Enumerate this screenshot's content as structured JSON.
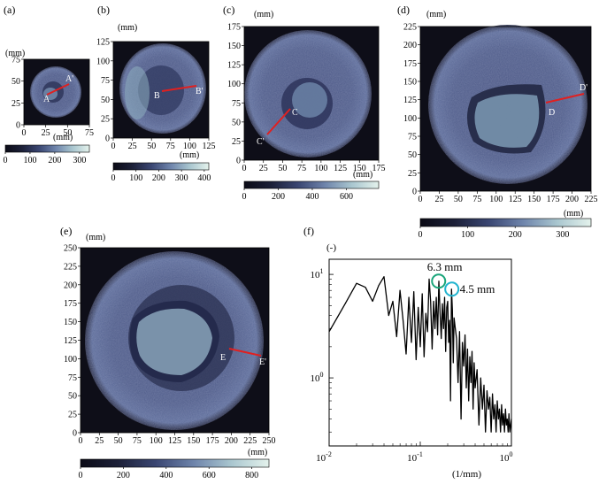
{
  "palette": {
    "ct_stops": [
      "#0b0b16",
      "#1c2038",
      "#3a4672",
      "#6e84ab",
      "#a9c6cf",
      "#e4f2ec"
    ],
    "line_red": "#e02020",
    "circle_green": "#1aa57a",
    "circle_cyan": "#22b4cf"
  },
  "unit_label": "(mm)",
  "panels": [
    {
      "id": "a",
      "label": "(a)",
      "range": 75,
      "xticks": [
        "0",
        "25",
        "50",
        "75"
      ],
      "yticks": [
        "0",
        "25",
        "50",
        "75"
      ],
      "cbar_ticks": [
        "0",
        "100",
        "200",
        "300"
      ],
      "cbar_max": 340,
      "line": [
        "A",
        "A'"
      ]
    },
    {
      "id": "b",
      "label": "(b)",
      "range": 125,
      "xticks": [
        "0",
        "25",
        "50",
        "75",
        "100",
        "125"
      ],
      "yticks": [
        "0",
        "25",
        "50",
        "75",
        "100",
        "125"
      ],
      "cbar_ticks": [
        "0",
        "100",
        "200",
        "300",
        "400"
      ],
      "cbar_max": 420,
      "line": [
        "B",
        "B'"
      ]
    },
    {
      "id": "c",
      "label": "(c)",
      "range": 175,
      "xticks": [
        "0",
        "25",
        "50",
        "75",
        "100",
        "125",
        "150",
        "175"
      ],
      "yticks": [
        "0",
        "25",
        "50",
        "75",
        "100",
        "125",
        "150",
        "175"
      ],
      "cbar_ticks": [
        "0",
        "200",
        "400",
        "600"
      ],
      "cbar_max": 790,
      "line": [
        "C",
        "C'"
      ]
    },
    {
      "id": "d",
      "label": "(d)",
      "range": 225,
      "xticks": [
        "0",
        "25",
        "50",
        "75",
        "100",
        "125",
        "150",
        "175",
        "200",
        "225"
      ],
      "yticks": [
        "0",
        "25",
        "50",
        "75",
        "100",
        "125",
        "150",
        "175",
        "200",
        "225"
      ],
      "cbar_ticks": [
        "0",
        "100",
        "200",
        "300"
      ],
      "cbar_max": 360,
      "line": [
        "D",
        "D'"
      ]
    },
    {
      "id": "e",
      "label": "(e)",
      "range": 250,
      "xticks": [
        "0",
        "25",
        "50",
        "75",
        "100",
        "125",
        "150",
        "175",
        "200",
        "225",
        "250"
      ],
      "yticks": [
        "0",
        "25",
        "50",
        "75",
        "100",
        "125",
        "150",
        "175",
        "200",
        "225",
        "250"
      ],
      "cbar_ticks": [
        "0",
        "200",
        "400",
        "600",
        "800"
      ],
      "cbar_max": 880,
      "line": [
        "E",
        "E'"
      ]
    }
  ],
  "spectrum": {
    "label": "(f)",
    "ylabel": "(-)",
    "xlabel": "(1/mm)",
    "xticks": [
      {
        "v": 0.01,
        "t": "10",
        "e": "-2"
      },
      {
        "v": 0.1,
        "t": "10",
        "e": "-1"
      },
      {
        "v": 1,
        "t": "10",
        "e": "0"
      }
    ],
    "yticks": [
      {
        "v": 1,
        "t": "10",
        "e": "0"
      },
      {
        "v": 10,
        "t": "10",
        "e": "1"
      }
    ],
    "annotations": [
      {
        "text": "6.3 mm",
        "x": 0.159,
        "y": 8.6,
        "color_key": "circle_green"
      },
      {
        "text": "4.5 mm",
        "x": 0.222,
        "y": 7.2,
        "color_key": "circle_cyan"
      }
    ]
  },
  "chart_data": {
    "type": "line",
    "title": "",
    "xlabel": "(1/mm)",
    "ylabel": "(-)",
    "xscale": "log",
    "yscale": "log",
    "xlim": [
      0.01,
      1
    ],
    "ylim": [
      0.22,
      14
    ],
    "series": [
      {
        "x": [
          0.01,
          0.015,
          0.02,
          0.025,
          0.03,
          0.035,
          0.04,
          0.045,
          0.05,
          0.055,
          0.06,
          0.065,
          0.07,
          0.075,
          0.08,
          0.085,
          0.09,
          0.095,
          0.1,
          0.105,
          0.11,
          0.115,
          0.12,
          0.125,
          0.13,
          0.135,
          0.14,
          0.145,
          0.15,
          0.155,
          0.16,
          0.165,
          0.17,
          0.175,
          0.18,
          0.185,
          0.19,
          0.195,
          0.2,
          0.205,
          0.21,
          0.215,
          0.22,
          0.225,
          0.23,
          0.235,
          0.24,
          0.25,
          0.26,
          0.27,
          0.28,
          0.29,
          0.3,
          0.31,
          0.32,
          0.33,
          0.34,
          0.35,
          0.36,
          0.37,
          0.38,
          0.39,
          0.4,
          0.42,
          0.44,
          0.46,
          0.48,
          0.5,
          0.52,
          0.54,
          0.56,
          0.58,
          0.6,
          0.62,
          0.64,
          0.66,
          0.68,
          0.7,
          0.72,
          0.74,
          0.76,
          0.78,
          0.8,
          0.82,
          0.84,
          0.86,
          0.88,
          0.9,
          0.92,
          0.94,
          0.96,
          0.98,
          1.0
        ],
        "y": [
          2.8,
          5.2,
          8.2,
          7.5,
          5.5,
          7.8,
          9.5,
          4.0,
          5.5,
          2.5,
          7.0,
          3.5,
          1.7,
          6.0,
          2.2,
          6.8,
          1.5,
          4.8,
          2.0,
          6.5,
          1.6,
          4.2,
          2.8,
          9.0,
          5.5,
          1.9,
          5.5,
          3.0,
          6.0,
          2.6,
          8.6,
          4.2,
          2.4,
          5.2,
          3.0,
          6.0,
          1.8,
          4.8,
          5.5,
          2.2,
          3.6,
          0.6,
          7.2,
          4.5,
          1.4,
          3.8,
          3.2,
          2.4,
          0.9,
          2.8,
          0.4,
          2.2,
          1.3,
          2.6,
          0.8,
          1.9,
          0.6,
          1.6,
          0.9,
          1.8,
          0.5,
          1.4,
          0.8,
          1.2,
          0.35,
          1.0,
          0.5,
          0.85,
          0.3,
          0.75,
          0.5,
          0.65,
          0.3,
          0.7,
          0.4,
          0.55,
          0.3,
          0.6,
          0.4,
          0.5,
          0.3,
          0.55,
          0.35,
          0.45,
          0.3,
          0.5,
          0.35,
          0.4,
          0.3,
          0.45,
          0.3,
          0.35,
          0.4
        ]
      }
    ]
  }
}
